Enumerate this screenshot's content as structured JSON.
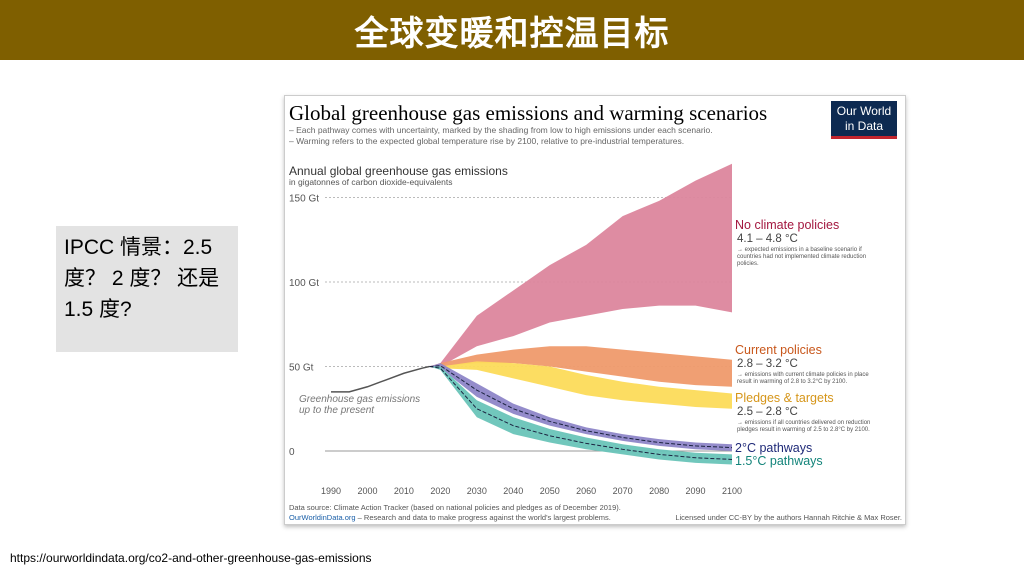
{
  "slide": {
    "title": "全球变暖和控温目标",
    "question": "IPCC 情景：2.5 度？ 2 度？ 还是 1.5 度?",
    "source_url": "https://ourworldindata.org/co2-and-other-greenhouse-gas-emissions"
  },
  "chart_data": {
    "type": "area",
    "title": "Global greenhouse gas emissions and warming scenarios",
    "subtitle_lines": [
      "– Each pathway comes with uncertainty, marked by the shading from low to high emissions under each scenario.",
      "– Warming refers to the expected global temperature rise by 2100, relative to pre-industrial temperatures."
    ],
    "logo": "Our World in Data",
    "ylabel": "Annual global greenhouse gas emissions",
    "ylabel_sub": "in gigatonnes of carbon dioxide-equivalents",
    "ylim": [
      -10,
      150
    ],
    "xlim": [
      1990,
      2100
    ],
    "y_ticks": [
      {
        "v": 150,
        "label": "150 Gt"
      },
      {
        "v": 100,
        "label": "100 Gt"
      },
      {
        "v": 50,
        "label": "50 Gt"
      },
      {
        "v": 0,
        "label": "0"
      }
    ],
    "x_ticks": [
      "1990",
      "2000",
      "2010",
      "2020",
      "2030",
      "2040",
      "2050",
      "2060",
      "2070",
      "2080",
      "2090",
      "2100"
    ],
    "historical": {
      "label": "Greenhouse gas emissions up to the present",
      "x": [
        1990,
        1995,
        2000,
        2005,
        2010,
        2015,
        2017
      ],
      "y": [
        35,
        35,
        38,
        42,
        46,
        49,
        50
      ]
    },
    "band_years": [
      2017,
      2020,
      2030,
      2040,
      2050,
      2060,
      2070,
      2080,
      2090,
      2100
    ],
    "series": [
      {
        "name": "No climate policies",
        "temp": "4.1 – 4.8 °C",
        "note": "→ expected emissions in a baseline scenario if countries had not implemented climate reduction policies.",
        "color": "#dc869d",
        "label_color": "#a3173f",
        "upper": [
          50,
          52,
          80,
          95,
          110,
          122,
          139,
          148,
          160,
          170
        ],
        "lower": [
          50,
          50,
          62,
          68,
          76,
          80,
          84,
          86,
          86,
          82
        ]
      },
      {
        "name": "Current policies",
        "temp": "2.8 – 3.2 °C",
        "note": "→ emissions with current climate policies in place result in warming of 2.8 to 3.2°C by 2100.",
        "color": "#ef9a6c",
        "label_color": "#c8571b",
        "upper": [
          50,
          52,
          57,
          60,
          62,
          62,
          60,
          58,
          56,
          54
        ],
        "lower": [
          50,
          50,
          52,
          52,
          50,
          47,
          44,
          41,
          39,
          38
        ]
      },
      {
        "name": "Pledges & targets",
        "temp": "2.5 – 2.8 °C",
        "note": "→ emissions if all countries delivered on reduction pledges result in warming of 2.5 to 2.8°C by 2100.",
        "color": "#fcdb5a",
        "label_color": "#d6961a",
        "upper": [
          50,
          50,
          53,
          52,
          50,
          45,
          41,
          38,
          36,
          34
        ],
        "lower": [
          50,
          49,
          48,
          43,
          38,
          33,
          30,
          28,
          26,
          25
        ]
      },
      {
        "name": "2°C pathways",
        "temp": "",
        "note": "",
        "color": "#8e86c8",
        "label_color": "#1f2a78",
        "upper": [
          50,
          52,
          40,
          28,
          20,
          14,
          10,
          7,
          5,
          4
        ],
        "lower": [
          50,
          49,
          32,
          22,
          15,
          10,
          6,
          3,
          1,
          0
        ]
      },
      {
        "name": "1.5°C pathways",
        "temp": "",
        "note": "",
        "color": "#69c4b8",
        "label_color": "#13847a",
        "upper": [
          50,
          50,
          30,
          20,
          13,
          8,
          4,
          1,
          -1,
          -2
        ],
        "lower": [
          50,
          48,
          20,
          10,
          5,
          1,
          -2,
          -5,
          -7,
          -8
        ]
      }
    ],
    "footer": {
      "source": "Data source: Climate Action Tracker (based on national policies and pledges as of December 2019).",
      "owid": "OurWorldinData.org",
      "owid_tail": " – Research and data to make progress against the world's largest problems.",
      "license": "Licensed under CC-BY by the authors Hannah Ritchie & Max Roser."
    },
    "grid": false
  }
}
